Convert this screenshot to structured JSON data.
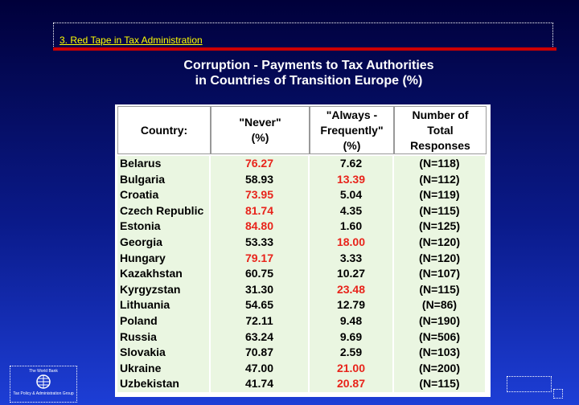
{
  "header": {
    "section": "3. Red Tape in Tax Administration",
    "title_lines": [
      "Corruption -  Payments to Tax Authorities",
      "in Countries of Transition Europe (%)"
    ]
  },
  "table": {
    "columns": [
      [
        "Country:"
      ],
      [
        "\"Never\"",
        "(%)"
      ],
      [
        "\"Always -",
        "Frequently\"",
        "(%)"
      ],
      [
        "Number of",
        "Total",
        "Responses"
      ]
    ],
    "rows": [
      [
        "Belarus",
        "76.27",
        "7.62",
        "(N=118)"
      ],
      [
        "Bulgaria",
        "58.93",
        "13.39",
        "(N=112)"
      ],
      [
        "Croatia",
        "73.95",
        "5.04",
        "(N=119)"
      ],
      [
        "Czech Republic",
        "81.74",
        "4.35",
        "(N=115)"
      ],
      [
        "Estonia",
        "84.80",
        "1.60",
        "(N=125)"
      ],
      [
        "Georgia",
        "53.33",
        "18.00",
        "(N=120)"
      ],
      [
        "Hungary",
        "79.17",
        "3.33",
        "(N=120)"
      ],
      [
        "Kazakhstan",
        "60.75",
        "10.27",
        "(N=107)"
      ],
      [
        "Kyrgyzstan",
        "31.30",
        "23.48",
        "(N=115)"
      ],
      [
        "Lithuania",
        "54.65",
        "12.79",
        "(N=86)"
      ],
      [
        "Poland",
        "72.11",
        "9.48",
        "(N=190)"
      ],
      [
        "Russia",
        "63.24",
        "9.69",
        "(N=506)"
      ],
      [
        "Slovakia",
        "70.87",
        "2.59",
        "(N=103)"
      ],
      [
        "Ukraine",
        "47.00",
        "21.00",
        "(N=200)"
      ],
      [
        "Uzbekistan",
        "41.74",
        "20.87",
        "(N=115)"
      ]
    ],
    "highlight_color": "#e8231a",
    "highlighted": [
      [
        0,
        1
      ],
      [
        1,
        2
      ],
      [
        2,
        1
      ],
      [
        3,
        1
      ],
      [
        4,
        1
      ],
      [
        5,
        2
      ],
      [
        6,
        1
      ],
      [
        8,
        2
      ],
      [
        13,
        2
      ],
      [
        14,
        2
      ]
    ]
  },
  "footer": {
    "logo_top": "The World Bank",
    "logo_bottom": "Tax Policy & Administration Group"
  }
}
